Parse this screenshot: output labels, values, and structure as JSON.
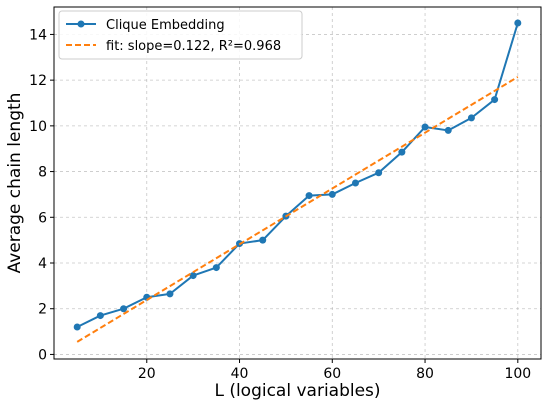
{
  "chart_data": {
    "type": "line",
    "xlabel": "L (logical variables)",
    "ylabel": "Average chain length",
    "xlim": [
      0,
      105
    ],
    "ylim": [
      -0.2,
      15.2
    ],
    "xticks": [
      20,
      40,
      60,
      80,
      100
    ],
    "yticks": [
      0,
      2,
      4,
      6,
      8,
      10,
      12,
      14
    ],
    "grid": true,
    "legend_position": "upper-left",
    "series": [
      {
        "name": "Clique Embedding",
        "color": "#1f77b4",
        "style": "solid-markers",
        "x": [
          5,
          10,
          15,
          20,
          25,
          30,
          35,
          40,
          45,
          50,
          55,
          60,
          65,
          70,
          75,
          80,
          85,
          90,
          95,
          100
        ],
        "y": [
          1.2,
          1.7,
          2.0,
          2.5,
          2.65,
          3.45,
          3.8,
          4.85,
          5.0,
          6.05,
          6.95,
          7.0,
          7.5,
          7.95,
          8.85,
          9.95,
          9.8,
          10.35,
          11.15,
          14.5
        ]
      },
      {
        "name": "fit: slope=0.122, R²=0.968",
        "color": "#ff7f0e",
        "style": "dashed",
        "x": [
          5,
          100
        ],
        "y": [
          0.55,
          12.14
        ]
      }
    ]
  }
}
